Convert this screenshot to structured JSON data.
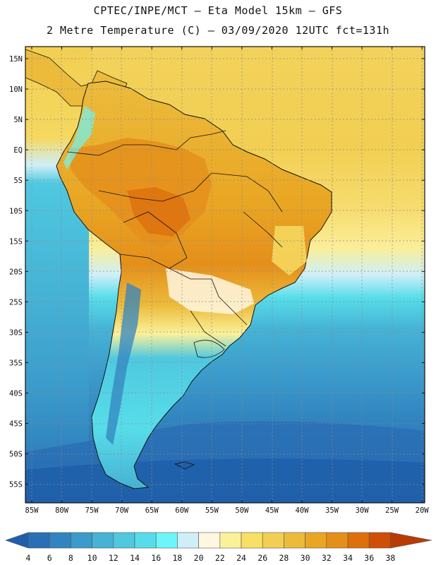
{
  "title_line1": "CPTEC/INPE/MCT –  Eta Model 15km – GFS",
  "title_line2": "2 Metre Temperature (C) – 03/09/2020 12UTC fct=131h",
  "lat_labels": [
    "15N",
    "10N",
    "5N",
    "EQ",
    "5S",
    "10S",
    "15S",
    "20S",
    "25S",
    "30S",
    "35S",
    "40S",
    "45S",
    "50S",
    "55S"
  ],
  "lon_labels": [
    "85W",
    "80W",
    "75W",
    "70W",
    "65W",
    "60W",
    "55W",
    "50W",
    "45W",
    "40W",
    "35W",
    "30W",
    "25W",
    "20W"
  ],
  "colorbar": {
    "labels": [
      "4",
      "6",
      "8",
      "10",
      "12",
      "14",
      "16",
      "18",
      "20",
      "22",
      "24",
      "26",
      "28",
      "30",
      "32",
      "34",
      "36",
      "38"
    ],
    "colors": [
      "#1f5faa",
      "#2a6fb4",
      "#3184bf",
      "#3b9bcb",
      "#46b2d5",
      "#4fc8e0",
      "#57dde9",
      "#6ef5f7",
      "#cfeff8",
      "#fff7e0",
      "#fbf19a",
      "#f8e066",
      "#f2cf52",
      "#ecbb3c",
      "#e9a623",
      "#e48f1b",
      "#de6f0d",
      "#d04f06",
      "#b83b04"
    ]
  }
}
